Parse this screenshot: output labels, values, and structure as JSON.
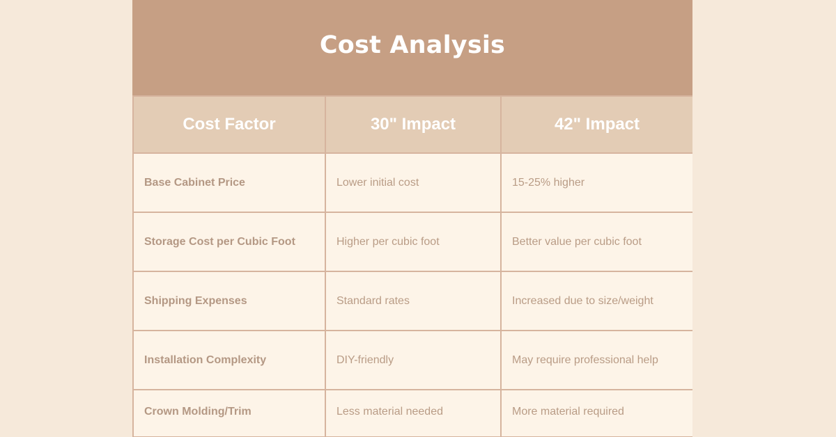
{
  "title": "Cost Analysis",
  "headers": [
    "Cost Factor",
    "30\" Impact",
    "42\" Impact"
  ],
  "rows": [
    [
      "Base Cabinet Price",
      "Lower initial cost",
      "15-25% higher"
    ],
    [
      "Storage Cost per Cubic Foot",
      "Higher per cubic foot",
      "Better value per cubic foot"
    ],
    [
      "Shipping Expenses",
      "Standard rates",
      "Increased due to size/weight"
    ],
    [
      "Installation Complexity",
      "DIY-friendly",
      "May require professional help"
    ],
    [
      "Crown Molding/Trim",
      "Less material needed",
      "More material required"
    ]
  ],
  "colors": {
    "background": "#f6e9da",
    "title_band": "#c69f84",
    "header_row": "#e3ccb5",
    "cell": "#fdf4e8",
    "border": "#d6b49e",
    "text": "#b99c86"
  }
}
